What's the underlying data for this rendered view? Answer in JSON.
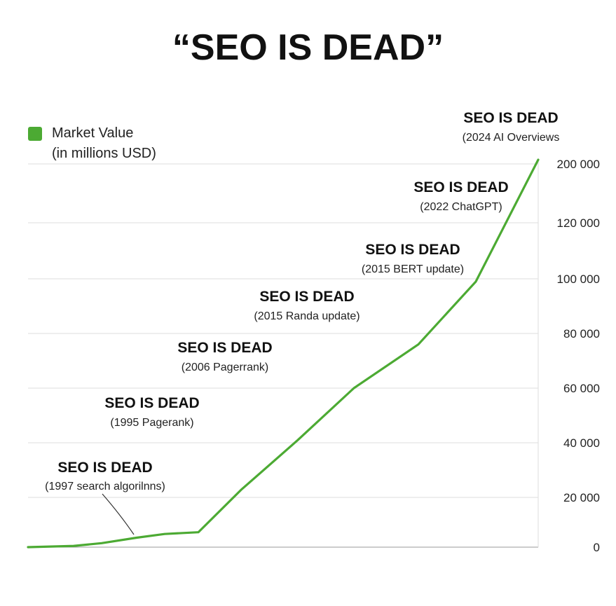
{
  "title": "“SEO IS DEAD”",
  "legend": {
    "label_line1": "Market Value",
    "label_line2": "(in millions USD)",
    "color": "#4caa33"
  },
  "chart_data": {
    "type": "line",
    "title": "“SEO IS DEAD”",
    "xlabel": "",
    "ylabel": "",
    "y_tick_labels": [
      "0",
      "20 000",
      "40 000",
      "60 000",
      "80 000",
      "100 000",
      "120 000",
      "200 000"
    ],
    "grid": true,
    "legend_position": "top-left",
    "series": [
      {
        "name": "Market Value (in millions USD)",
        "color": "#4caa33",
        "points": [
          {
            "x": 0,
            "y": 0
          },
          {
            "x": 1,
            "y": 500
          },
          {
            "x": 2,
            "y": 1600
          },
          {
            "x": 3,
            "y": 3800
          },
          {
            "x": 4,
            "y": 5300
          },
          {
            "x": 5,
            "y": 6000
          },
          {
            "x": 6,
            "y": 23000
          },
          {
            "x": 7,
            "y": 41000
          },
          {
            "x": 8,
            "y": 60000
          },
          {
            "x": 9,
            "y": 76000
          },
          {
            "x": 10,
            "y": 99000
          },
          {
            "x": 11,
            "y": 200000
          }
        ]
      }
    ],
    "annotations": [
      {
        "title": "SEO IS DEAD",
        "subtitle": "(1997 search algorilnns)"
      },
      {
        "title": "SEO IS DEAD",
        "subtitle": "(1995 Pagerank)"
      },
      {
        "title": "SEO IS DEAD",
        "subtitle": "(2006 Pagerrank)"
      },
      {
        "title": "SEO IS DEAD",
        "subtitle": "(2015 Randa update)"
      },
      {
        "title": "SEO IS DEAD",
        "subtitle": "(2015 BERT update)"
      },
      {
        "title": "SEO IS DEAD",
        "subtitle": "(2022 ChatGPT)"
      },
      {
        "title": "SEO IS DEAD",
        "subtitle": "(2024 AI Overviews"
      }
    ]
  }
}
